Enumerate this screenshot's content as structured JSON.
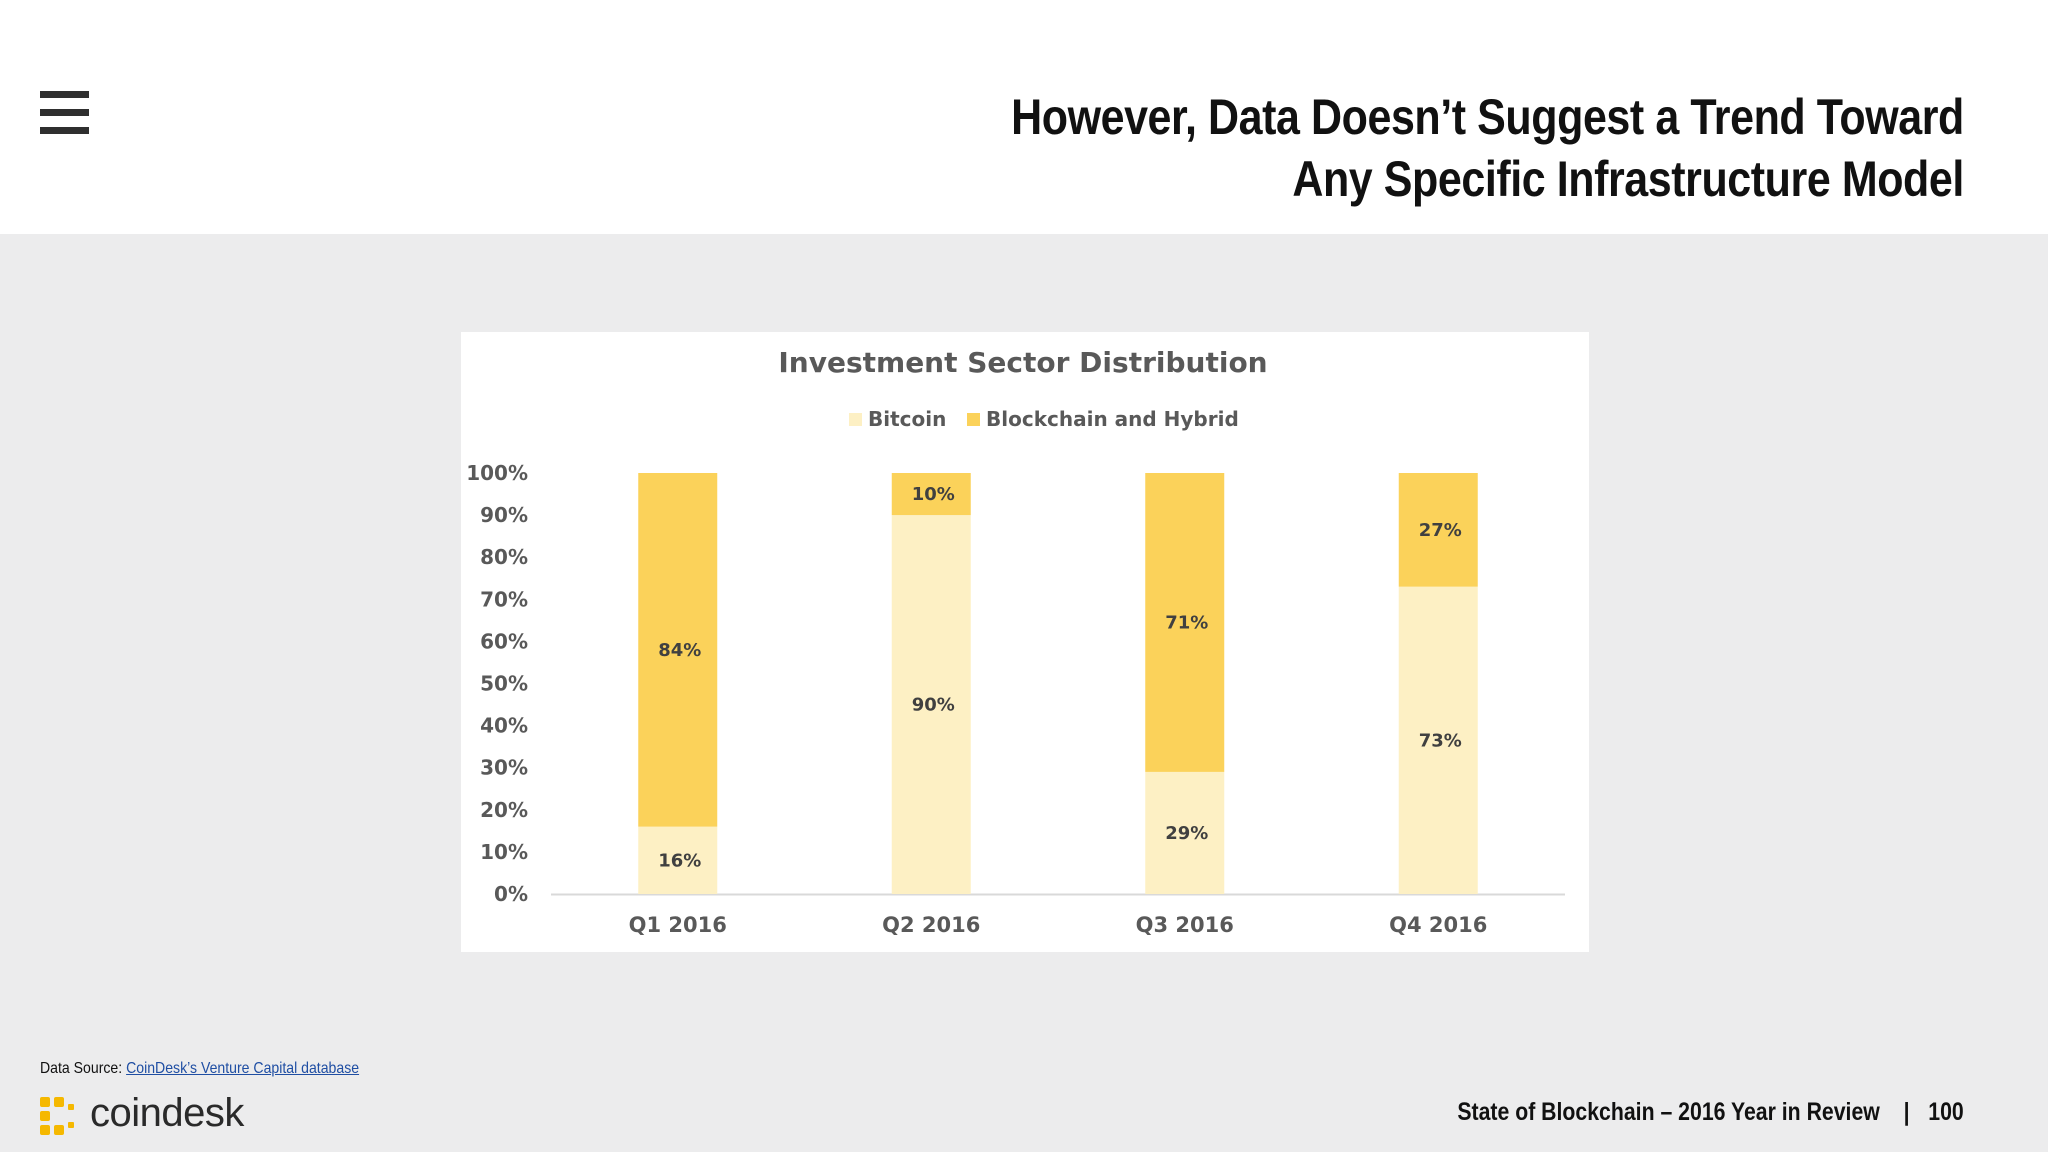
{
  "header": {
    "title_line1": "However, Data Doesn’t Suggest a Trend Toward",
    "title_line2": "Any Specific Infrastructure Model",
    "menu_icon": "hamburger-menu-icon"
  },
  "chart_data": {
    "type": "bar",
    "stacked": true,
    "title": "Investment Sector Distribution",
    "categories": [
      "Q1 2016",
      "Q2 2016",
      "Q3 2016",
      "Q4 2016"
    ],
    "series": [
      {
        "name": "Bitcoin",
        "values": [
          16,
          90,
          29,
          73
        ],
        "labels": [
          "16%",
          "90%",
          "29%",
          "73%"
        ],
        "color": "#fdf0c4"
      },
      {
        "name": "Blockchain and Hybrid",
        "values": [
          84,
          10,
          71,
          27
        ],
        "labels": [
          "84%",
          "10%",
          "71%",
          "27%"
        ],
        "color": "#fbd25a"
      }
    ],
    "ylim": [
      0,
      100
    ],
    "yticks": [
      "0%",
      "10%",
      "20%",
      "30%",
      "40%",
      "50%",
      "60%",
      "70%",
      "80%",
      "90%",
      "100%"
    ],
    "legend": "top",
    "grid": false
  },
  "footer": {
    "source_prefix": "Data Source: ",
    "source_link": "CoinDesk’s Venture Capital database",
    "logo_text": "coindesk",
    "report_title": "State of Blockchain – 2016 Year in Review",
    "separator": "|",
    "page_number": "100"
  },
  "colors": {
    "background": "#ececed",
    "card": "#ffffff",
    "bitcoin": "#fdf0c4",
    "blockchain": "#fbd25a",
    "logo_accent": "#f5b800"
  }
}
